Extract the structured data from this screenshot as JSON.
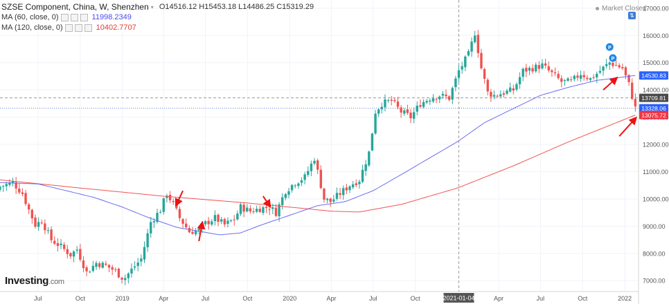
{
  "legend": {
    "symbol_title": "SZSE Component, China, W, Shenzhen",
    "ohlc": "O14516.12  H15453.18  L14486.25  C15319.29",
    "ma60_label": "MA (60, close, 0)",
    "ma60_value": "11998.2349",
    "ma120_label": "MA (120, close, 0)",
    "ma120_value": "10402.7707"
  },
  "status": {
    "market_closed": "Market Closed"
  },
  "watermark": {
    "brand": "Investing",
    "suffix": ".com"
  },
  "colors": {
    "up": "#26a69a",
    "down": "#ef5350",
    "ma60": "#6b6bf0",
    "ma120": "#ef5350",
    "arrow": "#ee1111",
    "tag_blue": "#2962ff",
    "tag_red": "#f23645",
    "tag_dark": "#4a4a4a",
    "marker": "#1e88e5"
  },
  "price_tags": [
    {
      "value": "14530.83",
      "style": "blue"
    },
    {
      "value": "13709.81",
      "style": "dark"
    },
    {
      "value": "13328.06",
      "style": "blue"
    },
    {
      "value": "13075.72",
      "style": "red"
    }
  ],
  "crosshair_date_label": "2021-01-04",
  "markers": [
    {
      "label": "P",
      "date": "2021-11-29"
    },
    {
      "label": "P",
      "date": "2021-12-06"
    }
  ],
  "chart_data": {
    "type": "candlestick",
    "title": "SZSE Component, China, W, Shenzhen",
    "y_ticks": [
      7000,
      8000,
      9000,
      10000,
      11000,
      12000,
      13000,
      14000,
      15000,
      16000,
      17000
    ],
    "ylim": [
      6600,
      17300
    ],
    "x_ticks": [
      {
        "label": "Jul",
        "date": "2018-07-01"
      },
      {
        "label": "Oct",
        "date": "2018-10-01"
      },
      {
        "label": "2019",
        "date": "2019-01-01"
      },
      {
        "label": "Apr",
        "date": "2019-04-01"
      },
      {
        "label": "Jul",
        "date": "2019-07-01"
      },
      {
        "label": "Oct",
        "date": "2019-10-01"
      },
      {
        "label": "2020",
        "date": "2020-01-01"
      },
      {
        "label": "Apr",
        "date": "2020-04-01"
      },
      {
        "label": "Jul",
        "date": "2020-07-01"
      },
      {
        "label": "Oct",
        "date": "2020-10-01"
      },
      {
        "label": "Apr",
        "date": "2021-04-01"
      },
      {
        "label": "Jul",
        "date": "2021-07-01"
      },
      {
        "label": "Oct",
        "date": "2021-10-01"
      },
      {
        "label": "2022",
        "date": "2022-01-01"
      }
    ],
    "x_range": [
      "2018-04-09",
      "2022-01-31"
    ],
    "last_date": "2022-01-24",
    "close_keypoints": [
      [
        "2018-04-09",
        10450
      ],
      [
        "2018-05-07",
        10600
      ],
      [
        "2018-05-28",
        10200
      ],
      [
        "2018-06-11",
        9600
      ],
      [
        "2018-06-25",
        9050
      ],
      [
        "2018-07-09",
        9200
      ],
      [
        "2018-07-30",
        8500
      ],
      [
        "2018-08-20",
        8250
      ],
      [
        "2018-09-10",
        7950
      ],
      [
        "2018-09-24",
        8150
      ],
      [
        "2018-10-15",
        7300
      ],
      [
        "2018-11-05",
        7650
      ],
      [
        "2018-11-26",
        7550
      ],
      [
        "2018-12-17",
        7350
      ],
      [
        "2019-01-04",
        7050
      ],
      [
        "2019-01-21",
        7400
      ],
      [
        "2019-02-11",
        7800
      ],
      [
        "2019-03-04",
        9150
      ],
      [
        "2019-03-25",
        9600
      ],
      [
        "2019-04-08",
        10200
      ],
      [
        "2019-04-22",
        9800
      ],
      [
        "2019-05-06",
        9300
      ],
      [
        "2019-05-27",
        8800
      ],
      [
        "2019-06-17",
        8850
      ],
      [
        "2019-07-01",
        9100
      ],
      [
        "2019-07-22",
        9300
      ],
      [
        "2019-08-12",
        9050
      ],
      [
        "2019-09-02",
        9250
      ],
      [
        "2019-09-16",
        9700
      ],
      [
        "2019-10-07",
        9550
      ],
      [
        "2019-10-28",
        9650
      ],
      [
        "2019-11-18",
        9700
      ],
      [
        "2019-12-02",
        9500
      ],
      [
        "2019-12-23",
        10300
      ],
      [
        "2020-01-13",
        10600
      ],
      [
        "2020-02-03",
        10800
      ],
      [
        "2020-02-24",
        11500
      ],
      [
        "2020-03-16",
        10000
      ],
      [
        "2020-03-30",
        9900
      ],
      [
        "2020-04-20",
        10200
      ],
      [
        "2020-05-11",
        10500
      ],
      [
        "2020-06-01",
        10700
      ],
      [
        "2020-06-22",
        11700
      ],
      [
        "2020-07-06",
        13200
      ],
      [
        "2020-07-20",
        13500
      ],
      [
        "2020-08-10",
        13600
      ],
      [
        "2020-08-31",
        13200
      ],
      [
        "2020-09-21",
        13000
      ],
      [
        "2020-10-12",
        13500
      ],
      [
        "2020-11-02",
        13700
      ],
      [
        "2020-11-23",
        13800
      ],
      [
        "2020-12-14",
        13700
      ],
      [
        "2021-01-04",
        14700
      ],
      [
        "2021-01-25",
        15300
      ],
      [
        "2021-02-08",
        16100
      ],
      [
        "2021-02-22",
        14800
      ],
      [
        "2021-03-08",
        13900
      ],
      [
        "2021-03-22",
        13800
      ],
      [
        "2021-04-12",
        13900
      ],
      [
        "2021-05-03",
        14000
      ],
      [
        "2021-05-24",
        14700
      ],
      [
        "2021-06-14",
        14800
      ],
      [
        "2021-07-05",
        14900
      ],
      [
        "2021-07-26",
        14600
      ],
      [
        "2021-08-16",
        14300
      ],
      [
        "2021-09-06",
        14300
      ],
      [
        "2021-09-27",
        14600
      ],
      [
        "2021-10-18",
        14400
      ],
      [
        "2021-11-08",
        14700
      ],
      [
        "2021-11-29",
        15000
      ],
      [
        "2021-12-13",
        14900
      ],
      [
        "2021-12-27",
        14800
      ],
      [
        "2022-01-10",
        14200
      ],
      [
        "2022-01-24",
        13330
      ]
    ],
    "ma60_keypoints": [
      [
        "2018-04-09",
        10600
      ],
      [
        "2018-07-01",
        10550
      ],
      [
        "2018-09-01",
        10300
      ],
      [
        "2018-11-01",
        10050
      ],
      [
        "2019-01-01",
        9700
      ],
      [
        "2019-03-01",
        9300
      ],
      [
        "2019-05-01",
        8950
      ],
      [
        "2019-06-15",
        8820
      ],
      [
        "2019-08-01",
        8680
      ],
      [
        "2019-09-15",
        8750
      ],
      [
        "2019-11-01",
        9050
      ],
      [
        "2020-01-01",
        9400
      ],
      [
        "2020-03-01",
        9750
      ],
      [
        "2020-05-01",
        9900
      ],
      [
        "2020-07-01",
        10300
      ],
      [
        "2020-09-01",
        10900
      ],
      [
        "2020-11-01",
        11500
      ],
      [
        "2021-01-01",
        12100
      ],
      [
        "2021-03-01",
        12800
      ],
      [
        "2021-05-01",
        13300
      ],
      [
        "2021-07-01",
        13800
      ],
      [
        "2021-09-01",
        14100
      ],
      [
        "2021-11-01",
        14350
      ],
      [
        "2022-01-24",
        14531
      ]
    ],
    "ma120_keypoints": [
      [
        "2018-04-09",
        10700
      ],
      [
        "2018-10-01",
        10400
      ],
      [
        "2019-04-01",
        10100
      ],
      [
        "2019-10-01",
        9850
      ],
      [
        "2020-01-01",
        9700
      ],
      [
        "2020-04-01",
        9550
      ],
      [
        "2020-06-01",
        9520
      ],
      [
        "2020-09-01",
        9800
      ],
      [
        "2021-01-01",
        10400
      ],
      [
        "2021-05-01",
        11200
      ],
      [
        "2021-09-01",
        12100
      ],
      [
        "2022-01-24",
        13076
      ]
    ],
    "annotations": {
      "dashed_horizontal_level": 13709.81,
      "dotted_horizontal_level": 13328.06,
      "vertical_crosshair_date": "2021-01-04",
      "arrows": [
        {
          "from_date": "2019-05-13",
          "from": 10300,
          "to_date": "2019-04-29",
          "to": 9800
        },
        {
          "from_date": "2019-06-17",
          "from": 8450,
          "to_date": "2019-06-24",
          "to": 9100
        },
        {
          "from_date": "2019-11-04",
          "from": 10100,
          "to_date": "2019-11-18",
          "to": 9750
        },
        {
          "from_date": "2021-11-15",
          "from": 14000,
          "to_date": "2021-12-13",
          "to": 14420
        },
        {
          "from_date": "2021-12-20",
          "from": 12300,
          "to_date": "2022-01-24",
          "to": 12950
        }
      ]
    }
  }
}
